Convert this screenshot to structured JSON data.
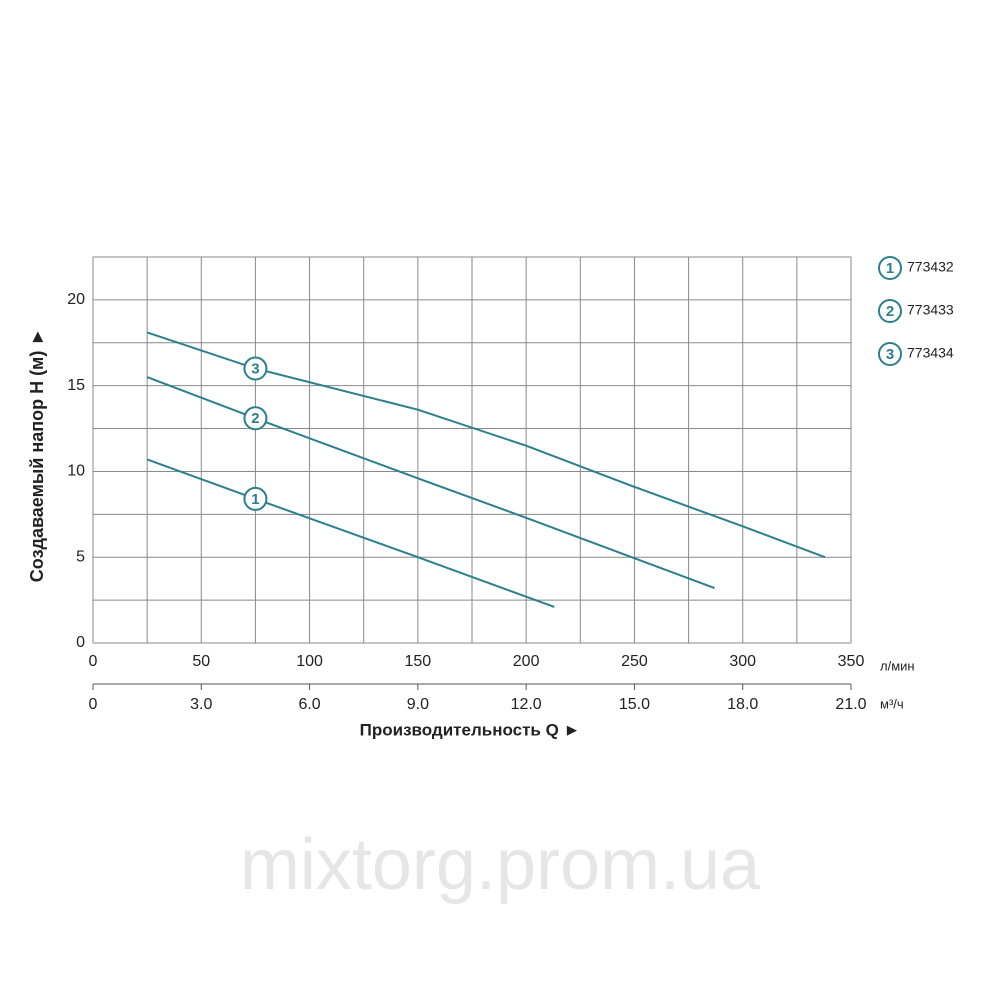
{
  "chart_data": {
    "type": "line",
    "y_label": "Создаваемый напор Н (м) ►",
    "x_label": "Производительность Q ►",
    "x_unit": "л/мин",
    "x2_unit": "м³/ч",
    "watermark": "mixtorg.prom.ua",
    "xlim": [
      0,
      350
    ],
    "xticks": [
      0,
      50,
      100,
      150,
      200,
      250,
      300,
      350
    ],
    "x_minor_ticks": [
      25,
      75,
      125,
      175,
      225,
      275,
      325
    ],
    "x2lim": [
      0,
      21
    ],
    "x2ticks": [
      0,
      {
        "value": 3,
        "label": "3.0"
      },
      {
        "value": 6,
        "label": "6.0"
      },
      {
        "value": 9,
        "label": "9.0"
      },
      {
        "value": 12,
        "label": "12.0"
      },
      {
        "value": 15,
        "label": "15.0"
      },
      {
        "value": 18,
        "label": "18.0"
      },
      {
        "value": 21,
        "label": "21.0"
      }
    ],
    "ylim": [
      0,
      22.5
    ],
    "yticks": [
      0,
      5,
      10,
      15,
      20
    ],
    "y_minor_ticks": [
      2.5,
      7.5,
      12.5,
      17.5
    ],
    "grid": true,
    "series": [
      {
        "name": "773432",
        "label": "1",
        "color": "#2b7f8e",
        "x": [
          25,
          75,
          150,
          213
        ],
        "values": [
          10.7,
          8.4,
          5.0,
          2.1
        ]
      },
      {
        "name": "773433",
        "label": "2",
        "color": "#2b7f8e",
        "x": [
          25,
          75,
          150,
          200,
          287
        ],
        "values": [
          15.5,
          13.1,
          9.6,
          7.3,
          3.2
        ]
      },
      {
        "name": "773434",
        "label": "3",
        "color": "#2b7f8e",
        "x": [
          25,
          75,
          150,
          200,
          250,
          300,
          338
        ],
        "values": [
          18.1,
          16.0,
          13.6,
          11.5,
          9.1,
          6.8,
          5.0
        ]
      }
    ]
  }
}
